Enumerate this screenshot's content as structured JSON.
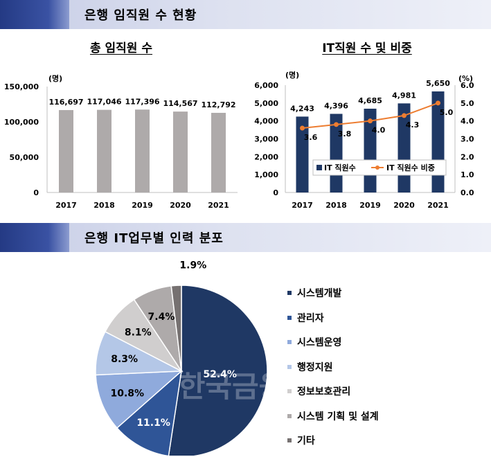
{
  "sections": {
    "top_title": "은행 임직원 수 현황",
    "bottom_title": "은행 IT업무별 인력 분포"
  },
  "colors": {
    "gray_bar": "#aeaaaa",
    "navy_bar": "#1f3864",
    "orange_line": "#ed7d31"
  },
  "chart_data": [
    {
      "type": "bar",
      "title": "총 임직원 수",
      "unit_label": "(명)",
      "categories": [
        "2017",
        "2018",
        "2019",
        "2020",
        "2021"
      ],
      "values": [
        116697,
        117046,
        117396,
        114567,
        112792
      ],
      "value_labels": [
        "116,697",
        "117,046",
        "117,396",
        "114,567",
        "112,792"
      ],
      "ylim": [
        0,
        150000
      ],
      "yticks": [
        "0",
        "50,000",
        "100,000",
        "150,000"
      ],
      "ytick_values": [
        0,
        50000,
        100000,
        150000
      ]
    },
    {
      "type": "bar",
      "title": "IT직원 수 및 비중",
      "left_unit_label": "(명)",
      "right_unit_label": "(%)",
      "categories": [
        "2017",
        "2018",
        "2019",
        "2020",
        "2021"
      ],
      "series": [
        {
          "name": "IT 직원수",
          "type": "bar",
          "axis": "left",
          "values": [
            4243,
            4396,
            4685,
            4981,
            5650
          ],
          "value_labels": [
            "4,243",
            "4,396",
            "4,685",
            "4,981",
            "5,650"
          ]
        },
        {
          "name": "IT 직원수 비중",
          "type": "line",
          "axis": "right",
          "values": [
            3.6,
            3.8,
            4.0,
            4.3,
            5.0
          ],
          "value_labels": [
            "3.6",
            "3.8",
            "4.0",
            "4.3",
            "5.0"
          ]
        }
      ],
      "ylim_left": [
        0,
        6000
      ],
      "yticks_left": [
        "0",
        "1,000",
        "2,000",
        "3,000",
        "4,000",
        "5,000",
        "6,000"
      ],
      "ylim_right": [
        0,
        6.0
      ],
      "yticks_right": [
        "0.0",
        "1.0",
        "2.0",
        "3.0",
        "4.0",
        "5.0",
        "6.0"
      ],
      "legend": "inside-right"
    },
    {
      "type": "pie",
      "categories": [
        "시스템개발",
        "관리자",
        "시스템운영",
        "행정지원",
        "정보보호관리",
        "시스템 기획 및 설계",
        "기타"
      ],
      "values": [
        52.4,
        11.1,
        10.8,
        8.3,
        8.1,
        7.4,
        1.9
      ],
      "value_labels": [
        "52.4%",
        "11.1%",
        "10.8%",
        "8.3%",
        "8.1%",
        "7.4%",
        "1.9%"
      ],
      "colors": [
        "#1f3864",
        "#2f5597",
        "#8faadc",
        "#b4c7e7",
        "#d0cece",
        "#aeaaaa",
        "#767171"
      ],
      "legend": "right"
    }
  ],
  "watermark": "한국금융"
}
